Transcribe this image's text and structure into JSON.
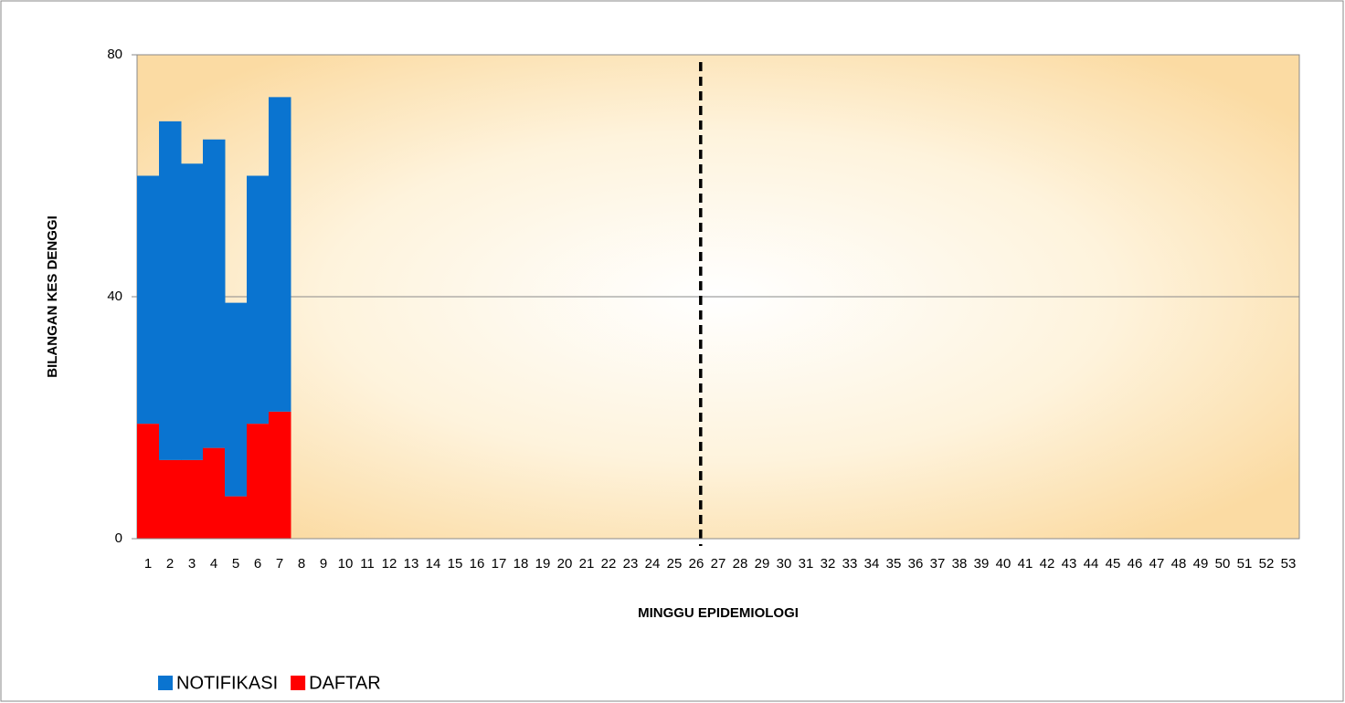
{
  "chart_data": {
    "type": "stacked_bar",
    "ylabel": "BILANGAN KES DENGGI",
    "xlabel": "MINGGU EPIDEMIOLOGI",
    "categories": [
      1,
      2,
      3,
      4,
      5,
      6,
      7,
      8,
      9,
      10,
      11,
      12,
      13,
      14,
      15,
      16,
      17,
      18,
      19,
      20,
      21,
      22,
      23,
      24,
      25,
      26,
      27,
      28,
      29,
      30,
      31,
      32,
      33,
      34,
      35,
      36,
      37,
      38,
      39,
      40,
      41,
      42,
      43,
      44,
      45,
      46,
      47,
      48,
      49,
      50,
      51,
      52,
      53
    ],
    "series": [
      {
        "name": "NOTIFIKASI",
        "color": "#0a74d0",
        "values": [
          41,
          56,
          49,
          51,
          32,
          41,
          52,
          null,
          null,
          null,
          null,
          null,
          null,
          null,
          null,
          null,
          null,
          null,
          null,
          null,
          null,
          null,
          null,
          null,
          null,
          null,
          null,
          null,
          null,
          null,
          null,
          null,
          null,
          null,
          null,
          null,
          null,
          null,
          null,
          null,
          null,
          null,
          null,
          null,
          null,
          null,
          null,
          null,
          null,
          null,
          null,
          null,
          null
        ]
      },
      {
        "name": "DAFTAR",
        "color": "#ff0000",
        "values": [
          19,
          13,
          13,
          15,
          7,
          19,
          21,
          null,
          null,
          null,
          null,
          null,
          null,
          null,
          null,
          null,
          null,
          null,
          null,
          null,
          null,
          null,
          null,
          null,
          null,
          null,
          null,
          null,
          null,
          null,
          null,
          null,
          null,
          null,
          null,
          null,
          null,
          null,
          null,
          null,
          null,
          null,
          null,
          null,
          null,
          null,
          null,
          null,
          null,
          null,
          null,
          null,
          null
        ]
      }
    ],
    "stack_order": [
      "DAFTAR",
      "NOTIFIKASI"
    ],
    "reference_line": {
      "x": 26,
      "style": "dashed",
      "color": "#000000"
    },
    "ylim": [
      0,
      80
    ],
    "yticks": [
      0,
      40,
      80
    ],
    "grid": true,
    "legend": "bottom-left"
  }
}
